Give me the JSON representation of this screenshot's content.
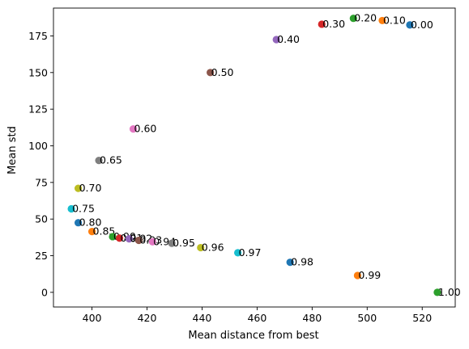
{
  "chart_data": {
    "type": "scatter",
    "title": "",
    "xlabel": "Mean distance from best",
    "ylabel": "Mean std",
    "xlim": [
      386,
      532
    ],
    "ylim": [
      -10,
      194
    ],
    "grid": false,
    "xticks": [
      400,
      420,
      440,
      460,
      480,
      500,
      520
    ],
    "yticks": [
      0,
      25,
      50,
      75,
      100,
      125,
      150,
      175
    ],
    "points": [
      {
        "label": "0.00",
        "x": 515.5,
        "y": 182.5,
        "color": "#1f77b4"
      },
      {
        "label": "0.10",
        "x": 505.5,
        "y": 185.5,
        "color": "#ff7f0e"
      },
      {
        "label": "0.20",
        "x": 495.0,
        "y": 187.0,
        "color": "#2ca02c"
      },
      {
        "label": "0.30",
        "x": 483.5,
        "y": 183.0,
        "color": "#d62728"
      },
      {
        "label": "0.40",
        "x": 467.0,
        "y": 172.5,
        "color": "#9467bd"
      },
      {
        "label": "0.50",
        "x": 443.0,
        "y": 150.0,
        "color": "#8c564b"
      },
      {
        "label": "0.60",
        "x": 415.0,
        "y": 111.5,
        "color": "#e377c2"
      },
      {
        "label": "0.65",
        "x": 402.5,
        "y": 90.0,
        "color": "#7f7f7f"
      },
      {
        "label": "0.70",
        "x": 395.0,
        "y": 71.0,
        "color": "#bcbd22"
      },
      {
        "label": "0.75",
        "x": 392.5,
        "y": 57.0,
        "color": "#17becf"
      },
      {
        "label": "0.80",
        "x": 395.0,
        "y": 47.5,
        "color": "#1f77b4"
      },
      {
        "label": "0.85",
        "x": 400.0,
        "y": 41.5,
        "color": "#ff7f0e"
      },
      {
        "label": "0.90",
        "x": 407.5,
        "y": 38.0,
        "color": "#2ca02c"
      },
      {
        "label": "0.91",
        "x": 410.0,
        "y": 37.0,
        "color": "#d62728"
      },
      {
        "label": "0.92",
        "x": 413.5,
        "y": 36.5,
        "color": "#9467bd"
      },
      {
        "label": "0.93",
        "x": 417.0,
        "y": 35.5,
        "color": "#8c564b"
      },
      {
        "label": "0.94",
        "x": 422.0,
        "y": 34.5,
        "color": "#e377c2"
      },
      {
        "label": "0.95",
        "x": 429.0,
        "y": 33.5,
        "color": "#7f7f7f"
      },
      {
        "label": "0.96",
        "x": 439.5,
        "y": 30.5,
        "color": "#bcbd22"
      },
      {
        "label": "0.97",
        "x": 453.0,
        "y": 27.0,
        "color": "#17becf"
      },
      {
        "label": "0.98",
        "x": 472.0,
        "y": 20.5,
        "color": "#1f77b4"
      },
      {
        "label": "0.99",
        "x": 496.5,
        "y": 11.5,
        "color": "#ff7f0e"
      },
      {
        "label": "1.00",
        "x": 525.5,
        "y": 0.0,
        "color": "#2ca02c"
      }
    ]
  }
}
